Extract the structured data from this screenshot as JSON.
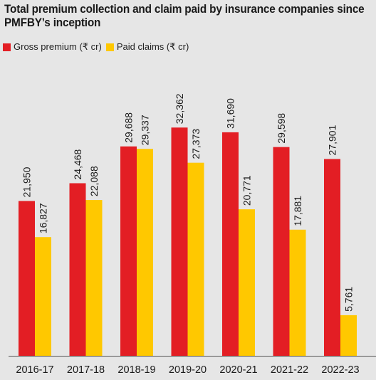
{
  "chart_data": {
    "type": "bar",
    "title": "Total premium collection and claim paid by insurance companies since PMFBY’s inception",
    "categories": [
      "2016-17",
      "2017-18",
      "2018-19",
      "2019-20",
      "2020-21",
      "2021-22",
      "2022-23"
    ],
    "series": [
      {
        "name": "Gross premium (₹ cr)",
        "color": "#e31e24",
        "values": [
          21950,
          24468,
          29688,
          32362,
          31690,
          29598,
          27901
        ],
        "labels": [
          "21,950",
          "24,468",
          "29,688",
          "32,362",
          "31,690",
          "29,598",
          "27,901"
        ]
      },
      {
        "name": "Paid claims (₹ cr)",
        "color": "#ffc800",
        "values": [
          16827,
          22088,
          29337,
          27373,
          20771,
          17881,
          5761
        ],
        "labels": [
          "16,827",
          "22,088",
          "29,337",
          "27,373",
          "20,771",
          "17,881",
          "5,761"
        ]
      }
    ],
    "ylim": [
      0,
      34000
    ],
    "grid": false,
    "legend": "top-left"
  }
}
